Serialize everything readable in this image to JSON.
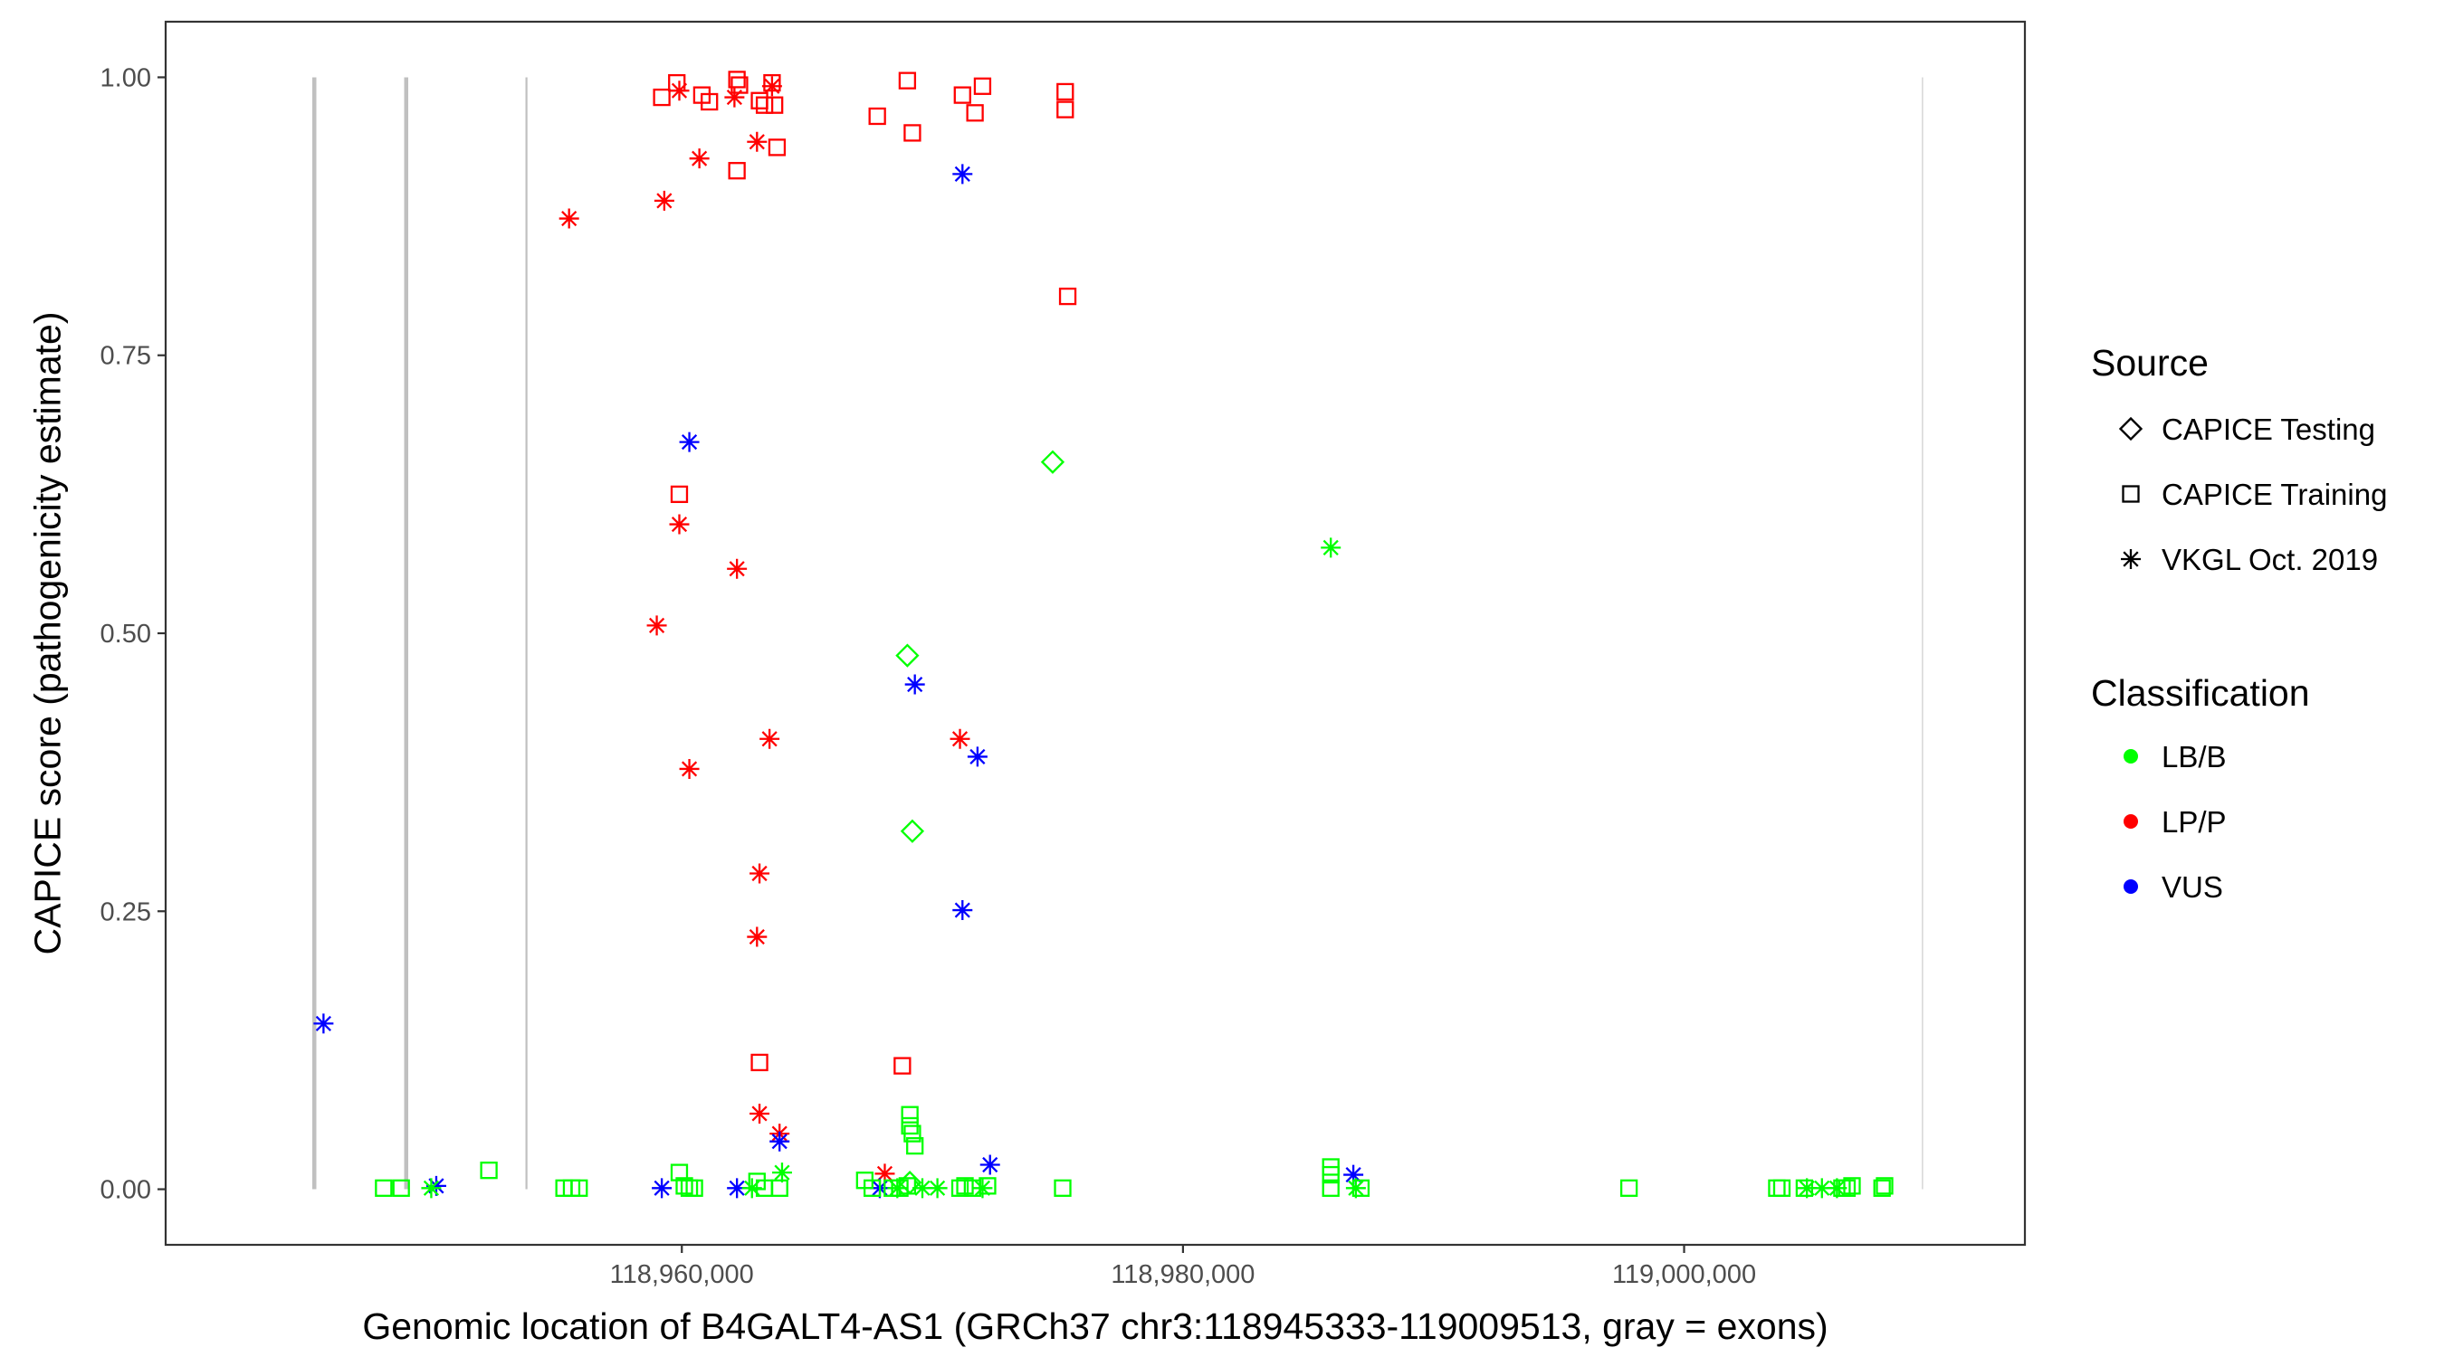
{
  "chart_data": {
    "type": "scatter",
    "xlabel": "Genomic location of B4GALT4-AS1 (GRCh37 chr3:118945333-119009513, gray = exons)",
    "ylabel": "CAPICE score (pathogenicity estimate)",
    "xlim": [
      118939400,
      119013600
    ],
    "ylim": [
      -0.05,
      1.05
    ],
    "grid": false,
    "x_ticks": [
      118960000,
      118980000,
      119000000
    ],
    "x_tick_labels": [
      "118,960,000",
      "118,980,000",
      "119,000,000"
    ],
    "y_ticks": [
      0.0,
      0.25,
      0.5,
      0.75,
      1.0
    ],
    "y_tick_labels": [
      "0.00",
      "0.25",
      "0.50",
      "0.75",
      "1.00"
    ],
    "exons": [
      {
        "x": 118945333,
        "weight": "thick"
      },
      {
        "x": 118949000,
        "weight": "thick"
      },
      {
        "x": 118953800,
        "weight": "thin"
      },
      {
        "x": 119009513,
        "weight": "faint"
      }
    ],
    "exon_color": "#c0c0c0",
    "legend_position": "right",
    "source_legend": {
      "title": "Source",
      "items": [
        {
          "label": "CAPICE Testing",
          "shape": "diamond"
        },
        {
          "label": "CAPICE Training",
          "shape": "square"
        },
        {
          "label": "VKGL Oct. 2019",
          "shape": "asterisk"
        }
      ]
    },
    "class_legend": {
      "title": "Classification",
      "items": [
        {
          "label": "LB/B",
          "color": "#00ff00"
        },
        {
          "label": "LP/P",
          "color": "#ff0000"
        },
        {
          "label": "VUS",
          "color": "#0000ff"
        }
      ]
    },
    "series": [
      {
        "classification": "LP/P",
        "source": "CAPICE Training",
        "points": [
          [
            118959200,
            0.982
          ],
          [
            118959800,
            0.995
          ],
          [
            118960800,
            0.984
          ],
          [
            118961100,
            0.978
          ],
          [
            118962200,
            0.998
          ],
          [
            118962300,
            0.993
          ],
          [
            118963100,
            0.979
          ],
          [
            118963300,
            0.975
          ],
          [
            118963600,
            0.995
          ],
          [
            118963700,
            0.975
          ],
          [
            118963800,
            0.937
          ],
          [
            118962200,
            0.916
          ],
          [
            118967800,
            0.965
          ],
          [
            118969000,
            0.997
          ],
          [
            118969200,
            0.95
          ],
          [
            118971200,
            0.984
          ],
          [
            118971700,
            0.968
          ],
          [
            118972000,
            0.992
          ],
          [
            118975300,
            0.987
          ],
          [
            118975300,
            0.971
          ],
          [
            118975400,
            0.803
          ],
          [
            118959900,
            0.625
          ],
          [
            118963100,
            0.114
          ],
          [
            118968800,
            0.111
          ]
        ]
      },
      {
        "classification": "LP/P",
        "source": "VKGL Oct. 2019",
        "points": [
          [
            118959900,
            0.988
          ],
          [
            118962100,
            0.982
          ],
          [
            118963600,
            0.992
          ],
          [
            118960700,
            0.927
          ],
          [
            118963000,
            0.942
          ],
          [
            118959300,
            0.889
          ],
          [
            118955500,
            0.873
          ],
          [
            118959900,
            0.598
          ],
          [
            118962200,
            0.558
          ],
          [
            118959000,
            0.507
          ],
          [
            118960300,
            0.378
          ],
          [
            118963500,
            0.405
          ],
          [
            118971100,
            0.405
          ],
          [
            118963100,
            0.284
          ],
          [
            118963000,
            0.227
          ],
          [
            118963100,
            0.068
          ],
          [
            118963900,
            0.05
          ],
          [
            118968100,
            0.014
          ]
        ]
      },
      {
        "classification": "VUS",
        "source": "VKGL Oct. 2019",
        "points": [
          [
            118971200,
            0.913
          ],
          [
            118960300,
            0.672
          ],
          [
            118969300,
            0.454
          ],
          [
            118971800,
            0.389
          ],
          [
            118971200,
            0.251
          ],
          [
            118945700,
            0.149
          ],
          [
            118963900,
            0.043
          ],
          [
            118972300,
            0.022
          ],
          [
            118986800,
            0.013
          ],
          [
            118950200,
            0.003
          ],
          [
            118959200,
            0.001
          ],
          [
            118962200,
            0.001
          ],
          [
            118967900,
            0.001
          ]
        ]
      },
      {
        "classification": "LB/B",
        "source": "CAPICE Testing",
        "points": [
          [
            118974800,
            0.654
          ],
          [
            118969000,
            0.48
          ],
          [
            118969200,
            0.322
          ],
          [
            118969100,
            0.006
          ]
        ]
      },
      {
        "classification": "LB/B",
        "source": "VKGL Oct. 2019",
        "points": [
          [
            118985900,
            0.577
          ],
          [
            118964000,
            0.015
          ],
          [
            118950000,
            0.001
          ],
          [
            118962800,
            0.001
          ],
          [
            118968600,
            0.001
          ],
          [
            118969600,
            0.001
          ],
          [
            118970200,
            0.001
          ],
          [
            118972000,
            0.001
          ],
          [
            118986900,
            0.001
          ],
          [
            119004900,
            0.001
          ],
          [
            119005500,
            0.001
          ],
          [
            119006100,
            0.001
          ]
        ]
      },
      {
        "classification": "LB/B",
        "source": "CAPICE Training",
        "points": [
          [
            118948100,
            0.001
          ],
          [
            118948800,
            0.001
          ],
          [
            118952300,
            0.017
          ],
          [
            118955300,
            0.001
          ],
          [
            118955600,
            0.001
          ],
          [
            118955900,
            0.001
          ],
          [
            118959900,
            0.015
          ],
          [
            118960100,
            0.003
          ],
          [
            118960300,
            0.001
          ],
          [
            118960500,
            0.001
          ],
          [
            118963000,
            0.007
          ],
          [
            118963300,
            0.001
          ],
          [
            118963900,
            0.001
          ],
          [
            118967300,
            0.008
          ],
          [
            118967600,
            0.001
          ],
          [
            118968400,
            0.001
          ],
          [
            118968700,
            0.001
          ],
          [
            118969000,
            0.003
          ],
          [
            118969100,
            0.067
          ],
          [
            118969100,
            0.057
          ],
          [
            118969200,
            0.05
          ],
          [
            118969300,
            0.039
          ],
          [
            118971100,
            0.001
          ],
          [
            118971300,
            0.003
          ],
          [
            118971600,
            0.001
          ],
          [
            118972200,
            0.003
          ],
          [
            118975200,
            0.001
          ],
          [
            118985900,
            0.02
          ],
          [
            118985900,
            0.013
          ],
          [
            118985900,
            0.001
          ],
          [
            118987100,
            0.001
          ],
          [
            118997800,
            0.001
          ],
          [
            119003700,
            0.001
          ],
          [
            119003900,
            0.001
          ],
          [
            119004800,
            0.001
          ],
          [
            119006300,
            0.001
          ],
          [
            119006500,
            0.001
          ],
          [
            119006700,
            0.003
          ],
          [
            119007900,
            0.001
          ],
          [
            119008000,
            0.003
          ]
        ]
      }
    ]
  }
}
